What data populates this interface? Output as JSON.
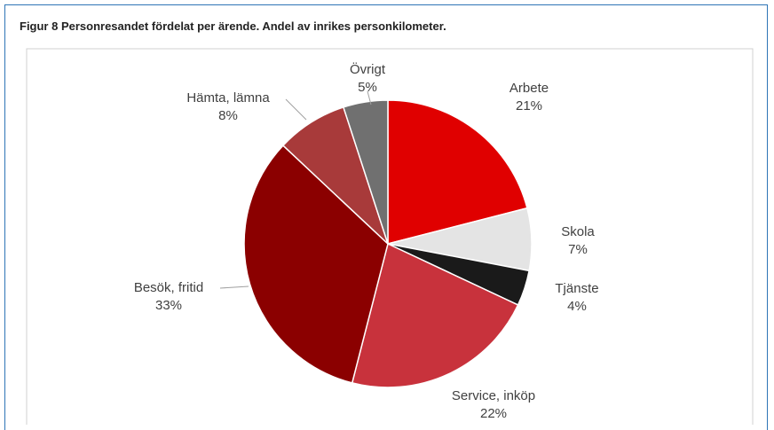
{
  "chart_data": {
    "type": "pie",
    "title": "Figur 8 Personresandet fördelat per ärende. Andel av inrikes personkilometer.",
    "categories": [
      "Arbete",
      "Skola",
      "Tjänste",
      "Service, inköp",
      "Besök, fritid",
      "Hämta, lämna",
      "Övrigt"
    ],
    "values": [
      21,
      7,
      4,
      22,
      33,
      8,
      5
    ],
    "value_labels": [
      "21%",
      "7%",
      "4%",
      "22%",
      "33%",
      "8%",
      "5%"
    ],
    "colors": [
      "#e00000",
      "#e4e4e4",
      "#1a1a1a",
      "#c8323c",
      "#8b0000",
      "#a83a3a",
      "#707070"
    ]
  }
}
